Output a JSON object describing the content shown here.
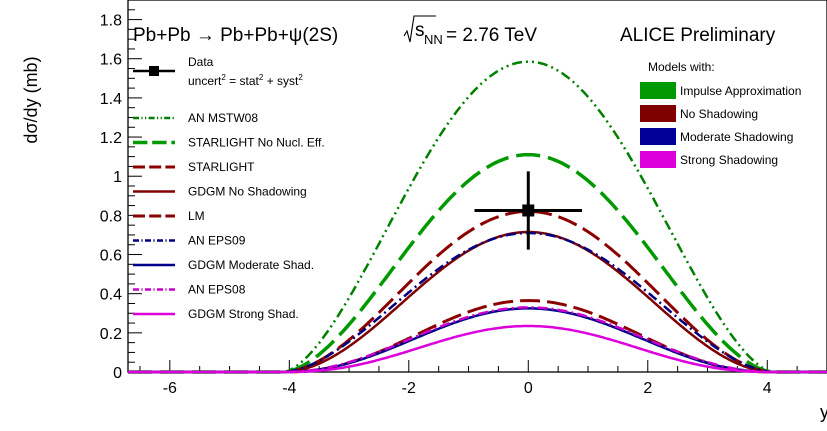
{
  "chart_data": {
    "type": "line",
    "title": "Pb+Pb → Pb+Pb+ψ(2S)",
    "energy_label": {
      "sqrt": "s",
      "sub": "NN",
      "value": "= 2.76 TeV"
    },
    "experiment_label": "ALICE Preliminary",
    "xlabel": "y",
    "ylabel": "dσ/dy (mb)",
    "xlim": [
      -6.7,
      5
    ],
    "ylim": [
      0,
      1.9
    ],
    "x_ticks": [
      -6,
      -4,
      -2,
      0,
      2,
      4
    ],
    "y_ticks": [
      0,
      0.2,
      0.4,
      0.6,
      0.8,
      1,
      1.2,
      1.4,
      1.6,
      1.8
    ],
    "x_tick_labels": [
      "-6",
      "-4",
      "-2",
      "0",
      "2",
      "4"
    ],
    "y_tick_labels": [
      "0",
      "0.2",
      "0.4",
      "0.6",
      "0.8",
      "1",
      "1.2",
      "1.4",
      "1.6",
      "1.8"
    ],
    "grid": false,
    "data_point": {
      "label": "Data",
      "uncert_label": {
        "a": "uncert",
        "b": " = stat",
        "c": " + syst"
      },
      "x": 0.0,
      "y": 0.825,
      "x_err": 0.9,
      "y_err": 0.2,
      "color": "#000000"
    },
    "series": [
      {
        "name": "AN MSTW08",
        "color": "#008000",
        "dash": "10 4 2 4 2 4",
        "width": 2.5,
        "peak": 1.585,
        "pow": 1.6,
        "edge": 0.05,
        "legend_col": 0
      },
      {
        "name": "STARLIGHT No Nucl. Eff.",
        "color": "#009900",
        "dash": "24 8",
        "width": 3.5,
        "peak": 1.11,
        "pow": 1.7,
        "edge": 0.07,
        "legend_col": 0
      },
      {
        "name": "STARLIGHT",
        "color": "#8b0000",
        "dash": "20 7",
        "width": 3,
        "peak": 0.82,
        "pow": 1.8,
        "edge": 0.06,
        "legend_col": 0
      },
      {
        "name": "GDGM No Shadowing",
        "color": "#800000",
        "dash": "",
        "width": 2.5,
        "peak": 0.715,
        "pow": 1.9,
        "edge": 0.06,
        "legend_col": 0
      },
      {
        "name": "LM",
        "color": "#8b0000",
        "dash": "20 7",
        "width": 3,
        "peak": 0.365,
        "pow": 2.3,
        "edge": 0.05,
        "legend_col": 0
      },
      {
        "name": "AN EPS09",
        "color": "#000080",
        "dash": "10 4 2 4",
        "width": 2.5,
        "peak": 0.71,
        "pow": 1.7,
        "edge": 0.05,
        "legend_col": 0
      },
      {
        "name": "GDGM Moderate Shad.",
        "color": "#00008b",
        "dash": "",
        "width": 2.5,
        "peak": 0.325,
        "pow": 2.2,
        "edge": 0.07,
        "legend_col": 0
      },
      {
        "name": "AN EPS08",
        "color": "#cc00cc",
        "dash": "10 4 2 4",
        "width": 2.5,
        "peak": 0.33,
        "pow": 2.1,
        "edge": 0.05,
        "legend_col": 0
      },
      {
        "name": "GDGM Strong Shad.",
        "color": "#dd00dd",
        "dash": "",
        "width": 2.5,
        "peak": 0.235,
        "pow": 2.4,
        "edge": 0.07,
        "legend_col": 0
      }
    ],
    "models_legend": {
      "title": "Models with:",
      "entries": [
        {
          "name": "Impulse Approximation",
          "color": "#009900"
        },
        {
          "name": "No Shadowing",
          "color": "#800000"
        },
        {
          "name": "Moderate Shadowing",
          "color": "#000099"
        },
        {
          "name": "Strong Shadowing",
          "color": "#dd00dd"
        }
      ]
    }
  }
}
